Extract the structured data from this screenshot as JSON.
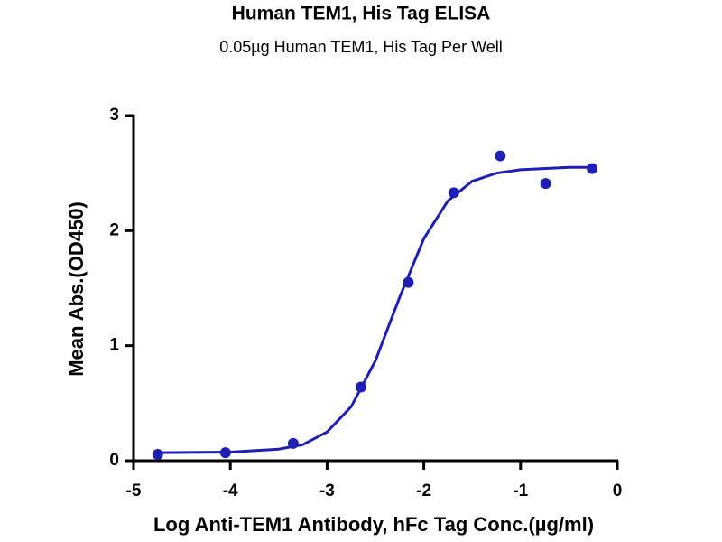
{
  "chart_data": {
    "type": "scatter",
    "title": "Human TEM1, His Tag ELISA",
    "subtitle": "0.05µg Human TEM1, His Tag Per Well",
    "x_label": "Log Anti-TEM1 Antibody, hFc Tag Conc.(µg/ml)",
    "y_label": "Mean Abs.(OD450)",
    "xlim": [
      -5,
      0
    ],
    "xticks": [
      -5,
      -4,
      -3,
      -2,
      -1,
      0
    ],
    "ylim": [
      0,
      3
    ],
    "yticks": [
      0,
      1,
      2,
      3
    ],
    "color": "#1f1fb4",
    "x": [
      -4.75,
      -4.05,
      -3.35,
      -2.65,
      -2.16,
      -1.69,
      -1.21,
      -0.74,
      -0.26
    ],
    "values": [
      0.055,
      0.07,
      0.15,
      0.64,
      1.55,
      2.33,
      2.65,
      2.41,
      2.54
    ],
    "fit": {
      "x": [
        -4.75,
        -4.0,
        -3.5,
        -3.25,
        -3.0,
        -2.75,
        -2.5,
        -2.25,
        -2.0,
        -1.75,
        -1.5,
        -1.25,
        -1.0,
        -0.5,
        -0.26
      ],
      "values": [
        0.07,
        0.075,
        0.1,
        0.14,
        0.25,
        0.47,
        0.87,
        1.42,
        1.93,
        2.26,
        2.43,
        2.5,
        2.53,
        2.55,
        2.55
      ]
    }
  }
}
